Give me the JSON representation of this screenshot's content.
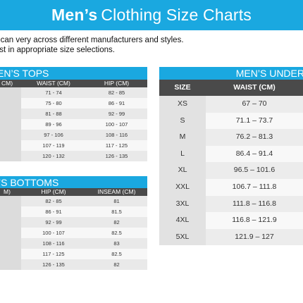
{
  "banner": {
    "bold": "Men’s",
    "rest": "Clothing Size Charts"
  },
  "intro": {
    "line1": "e can very across different manufacturers and styles.",
    "line2": "sist in appropriate size selections."
  },
  "tops": {
    "title": "EN’S TOPS",
    "headers": [
      "CM)",
      "WAIST (CM)",
      "HIP (CM)"
    ],
    "rows": [
      [
        "",
        "71 - 74",
        "82 - 85"
      ],
      [
        "",
        "75 - 80",
        "86 - 91"
      ],
      [
        "",
        "81 - 88",
        "92 - 99"
      ],
      [
        "",
        "89 - 96",
        "100 - 107"
      ],
      [
        "",
        "97 - 106",
        "108 - 116"
      ],
      [
        "",
        "107 - 119",
        "117 - 125"
      ],
      [
        "",
        "120 - 132",
        "126 - 135"
      ]
    ]
  },
  "bottoms": {
    "title": "’S BOTTOMS",
    "headers": [
      "M)",
      "HIP (CM)",
      "INSEAM (CM)"
    ],
    "rows": [
      [
        "",
        "82 - 85",
        "81"
      ],
      [
        "",
        "86 - 91",
        "81.5"
      ],
      [
        "",
        "92 - 99",
        "82"
      ],
      [
        "",
        "100 - 107",
        "82.5"
      ],
      [
        "",
        "108 - 116",
        "83"
      ],
      [
        "",
        "117 - 125",
        "82.5"
      ],
      [
        "",
        "126 - 135",
        "82"
      ]
    ]
  },
  "underwear": {
    "title": "MEN’S UNDER",
    "headers": [
      "SIZE",
      "WAIST (CM)"
    ],
    "rows": [
      [
        "XS",
        "67 – 70"
      ],
      [
        "S",
        "71.1 – 73.7"
      ],
      [
        "M",
        "76.2 – 81.3"
      ],
      [
        "L",
        "86.4 – 91.4"
      ],
      [
        "XL",
        "96.5 – 101.6"
      ],
      [
        "XXL",
        "106.7 – 111.8"
      ],
      [
        "3XL",
        "111.8 – 116.8"
      ],
      [
        "4XL",
        "116.8 – 121.9"
      ],
      [
        "5XL",
        "121.9 – 127"
      ]
    ]
  }
}
